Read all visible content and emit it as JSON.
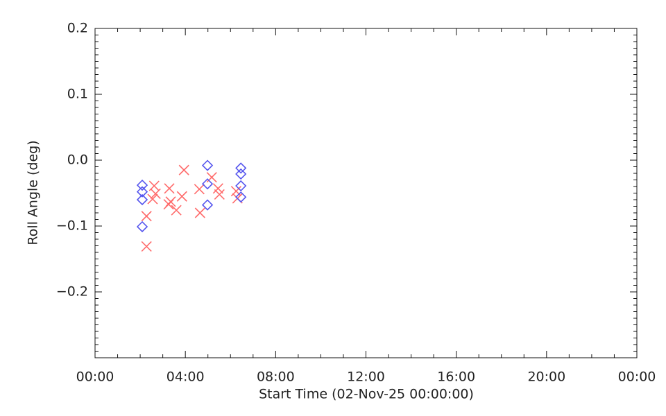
{
  "chart_data": {
    "type": "scatter",
    "xlabel": "Start Time (02-Nov-25 00:00:00)",
    "ylabel": "Roll Angle (deg)",
    "xlim": [
      0,
      24
    ],
    "xticks": [
      {
        "value": 0,
        "label": "00:00"
      },
      {
        "value": 4,
        "label": "04:00"
      },
      {
        "value": 8,
        "label": "08:00"
      },
      {
        "value": 12,
        "label": "12:00"
      },
      {
        "value": 16,
        "label": "16:00"
      },
      {
        "value": 20,
        "label": "20:00"
      },
      {
        "value": 24,
        "label": "00:00"
      }
    ],
    "ylim": [
      -0.3,
      0.2
    ],
    "yticks": [
      {
        "value": -0.2,
        "label": "−0.2"
      },
      {
        "value": -0.1,
        "label": "−0.1"
      },
      {
        "value": 0,
        "label": "0.0"
      },
      0.1,
      0.2
    ],
    "series": [
      {
        "color": "#ff6b6b",
        "marker": "x",
        "x": [
          2.28,
          2.28,
          2.55,
          2.62,
          2.68,
          3.26,
          3.29,
          3.35,
          3.6,
          3.85,
          3.94,
          4.65,
          4.62,
          5.17,
          5.45,
          5.51,
          6.25,
          6.31
        ],
        "values": [
          -0.131,
          -0.085,
          -0.059,
          -0.039,
          -0.051,
          -0.067,
          -0.043,
          -0.063,
          -0.076,
          -0.055,
          -0.015,
          -0.08,
          -0.044,
          -0.026,
          -0.043,
          -0.052,
          -0.047,
          -0.058
        ]
      },
      {
        "color": "#5555ee",
        "marker": "diamond",
        "x": [
          2.09,
          2.09,
          2.09,
          2.09,
          4.98,
          4.98,
          4.98,
          6.46,
          6.46,
          6.46,
          6.46
        ],
        "values": [
          -0.038,
          -0.048,
          -0.06,
          -0.101,
          -0.008,
          -0.036,
          -0.068,
          -0.012,
          -0.021,
          -0.039,
          -0.056
        ]
      }
    ]
  }
}
